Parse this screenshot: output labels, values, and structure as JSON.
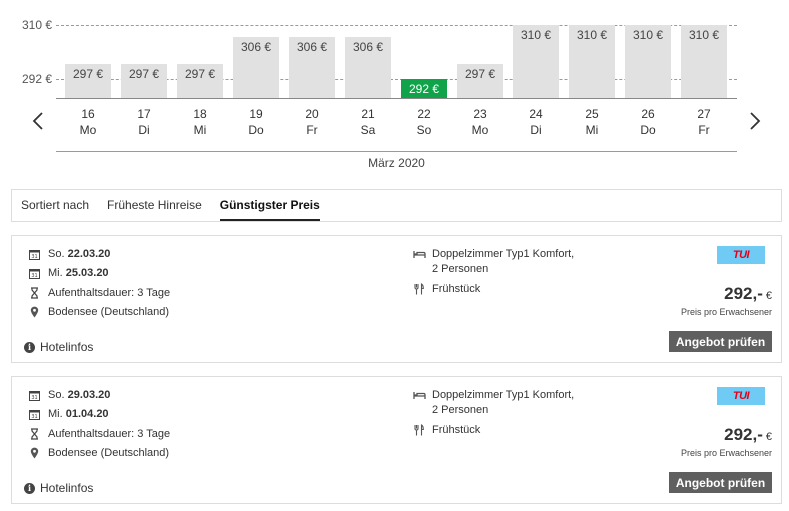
{
  "calendar": {
    "y_axis": {
      "labels": [
        "310 €",
        "292 €"
      ],
      "min_label": "292 €",
      "max_label": "310 €",
      "range": [
        292,
        310
      ]
    },
    "prev_icon": "chevron-left-icon",
    "next_icon": "chevron-right-icon",
    "month": "März 2020",
    "days": [
      {
        "day": "16",
        "weekday": "Mo",
        "price": 297,
        "label": "297 €"
      },
      {
        "day": "17",
        "weekday": "Di",
        "price": 297,
        "label": "297 €"
      },
      {
        "day": "18",
        "weekday": "Mi",
        "price": 297,
        "label": "297 €"
      },
      {
        "day": "19",
        "weekday": "Do",
        "price": 306,
        "label": "306 €"
      },
      {
        "day": "20",
        "weekday": "Fr",
        "price": 306,
        "label": "306 €"
      },
      {
        "day": "21",
        "weekday": "Sa",
        "price": 306,
        "label": "306 €"
      },
      {
        "day": "22",
        "weekday": "So",
        "price": 292,
        "label": "292 €",
        "best": true
      },
      {
        "day": "23",
        "weekday": "Mo",
        "price": 297,
        "label": "297 €"
      },
      {
        "day": "24",
        "weekday": "Di",
        "price": 310,
        "label": "310 €"
      },
      {
        "day": "25",
        "weekday": "Mi",
        "price": 310,
        "label": "310 €"
      },
      {
        "day": "26",
        "weekday": "Do",
        "price": 310,
        "label": "310 €"
      },
      {
        "day": "27",
        "weekday": "Fr",
        "price": 310,
        "label": "310 €"
      }
    ],
    "colors": {
      "bar": "#e1e1e1",
      "best": "#11a34a"
    }
  },
  "sort": {
    "label": "Sortiert nach",
    "options": [
      "Früheste Hinreise",
      "Günstigster Preis"
    ],
    "active": "Günstigster Preis"
  },
  "offers": [
    {
      "depart_day": "So.",
      "depart_date": "22.03.20",
      "return_day": "Mi.",
      "return_date": "25.03.20",
      "duration": "Aufenthaltsdauer: 3 Tage",
      "location": "Bodensee (Deutschland)",
      "room_line1": "Doppelzimmer Typ1 Komfort,",
      "room_line2": "2 Personen",
      "board": "Frühstück",
      "operator": "TUI",
      "price": "292,-",
      "currency": "€",
      "price_note": "Preis pro Erwachsener",
      "cta": "Angebot prüfen",
      "hotelinfo": "Hotelinfos"
    },
    {
      "depart_day": "So.",
      "depart_date": "29.03.20",
      "return_day": "Mi.",
      "return_date": "01.04.20",
      "duration": "Aufenthaltsdauer: 3 Tage",
      "location": "Bodensee (Deutschland)",
      "room_line1": "Doppelzimmer Typ1 Komfort,",
      "room_line2": "2 Personen",
      "board": "Frühstück",
      "operator": "TUI",
      "price": "292,-",
      "currency": "€",
      "price_note": "Preis pro Erwachsener",
      "cta": "Angebot prüfen",
      "hotelinfo": "Hotelinfos"
    }
  ]
}
